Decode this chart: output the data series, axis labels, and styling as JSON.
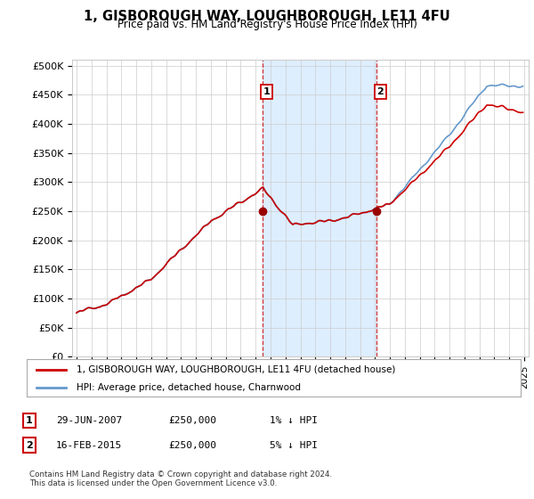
{
  "title": "1, GISBOROUGH WAY, LOUGHBOROUGH, LE11 4FU",
  "subtitle": "Price paid vs. HM Land Registry's House Price Index (HPI)",
  "ylabel_ticks": [
    "£0",
    "£50K",
    "£100K",
    "£150K",
    "£200K",
    "£250K",
    "£300K",
    "£350K",
    "£400K",
    "£450K",
    "£500K"
  ],
  "ytick_values": [
    0,
    50000,
    100000,
    150000,
    200000,
    250000,
    300000,
    350000,
    400000,
    450000,
    500000
  ],
  "ylim": [
    0,
    510000
  ],
  "xlim_start": 1994.7,
  "xlim_end": 2025.3,
  "sale1_date": 2007.49,
  "sale1_price": 250000,
  "sale1_label": "1",
  "sale2_date": 2015.12,
  "sale2_price": 250000,
  "sale2_label": "2",
  "legend_line1": "1, GISBOROUGH WAY, LOUGHBOROUGH, LE11 4FU (detached house)",
  "legend_line2": "HPI: Average price, detached house, Charnwood",
  "table_row1": [
    "1",
    "29-JUN-2007",
    "£250,000",
    "1% ↓ HPI"
  ],
  "table_row2": [
    "2",
    "16-FEB-2015",
    "£250,000",
    "5% ↓ HPI"
  ],
  "footnote": "Contains HM Land Registry data © Crown copyright and database right 2024.\nThis data is licensed under the Open Government Licence v3.0.",
  "hpi_color": "#6699cc",
  "price_color": "#cc0000",
  "sale_marker_color": "#990000",
  "vline_color": "#cc0000",
  "bg_highlight_color": "#ddeeff",
  "grid_color": "#cccccc",
  "background_color": "#ffffff"
}
